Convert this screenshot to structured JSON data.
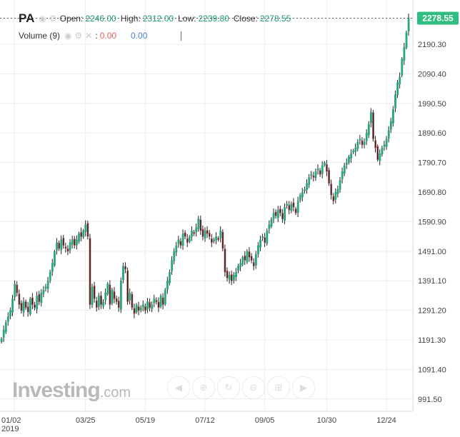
{
  "legend": {
    "symbol": "PA",
    "open_label": "Open:",
    "open": "2246.00",
    "high_label": "High:",
    "high": "2312.00",
    "low_label": "Low:",
    "low": "2239.80",
    "close_label": "Close:",
    "close": "2278.55",
    "volume_label": "Volume (9)",
    "volume_sep": ":",
    "volume_val1": "0.00",
    "volume_val2": "0.00"
  },
  "watermark": {
    "brand": "Investing",
    "domain": ".com"
  },
  "colors": {
    "up": "#26a67a",
    "down": "#e07070",
    "grid": "#ececec",
    "price_tag": "#2fbe7f"
  },
  "chart_data": {
    "type": "candlestick",
    "title": "",
    "xlabel": "",
    "ylabel": "",
    "ylim": [
      950,
      2340
    ],
    "y_ticks": [
      "2190.30",
      "2090.40",
      "1990.50",
      "1890.60",
      "1790.70",
      "1690.80",
      "1590.90",
      "1491.00",
      "1391.10",
      "1291.20",
      "1191.30",
      "1091.40",
      "991.50"
    ],
    "x_ticks": [
      "01/02\n2019",
      "03/25",
      "05/19",
      "07/12",
      "09/05",
      "10/30",
      "12/24"
    ],
    "last_price_label": "2278.55",
    "last_price": 2278.55,
    "grid": true,
    "closes": [
      1195,
      1225,
      1250,
      1270,
      1290,
      1330,
      1380,
      1350,
      1310,
      1290,
      1320,
      1300,
      1285,
      1330,
      1310,
      1300,
      1340,
      1320,
      1350,
      1360,
      1370,
      1390,
      1420,
      1450,
      1490,
      1520,
      1500,
      1530,
      1510,
      1500,
      1490,
      1520,
      1530,
      1510,
      1530,
      1550,
      1540,
      1560,
      1580,
      1540,
      1310,
      1370,
      1330,
      1300,
      1340,
      1310,
      1320,
      1350,
      1380,
      1310,
      1360,
      1330,
      1320,
      1300,
      1390,
      1440,
      1430,
      1320,
      1350,
      1300,
      1280,
      1310,
      1290,
      1300,
      1310,
      1290,
      1320,
      1300,
      1310,
      1330,
      1320,
      1300,
      1340,
      1310,
      1360,
      1390,
      1420,
      1460,
      1490,
      1510,
      1530,
      1510,
      1550,
      1540,
      1520,
      1540,
      1560,
      1550,
      1570,
      1600,
      1560,
      1540,
      1560,
      1550,
      1540,
      1520,
      1530,
      1540,
      1530,
      1560,
      1500,
      1420,
      1400,
      1410,
      1390,
      1410,
      1420,
      1440,
      1450,
      1470,
      1460,
      1490,
      1470,
      1460,
      1440,
      1480,
      1510,
      1530,
      1540,
      1520,
      1560,
      1580,
      1600,
      1620,
      1610,
      1630,
      1620,
      1600,
      1640,
      1650,
      1630,
      1650,
      1640,
      1620,
      1660,
      1680,
      1690,
      1700,
      1720,
      1740,
      1750,
      1740,
      1760,
      1770,
      1750,
      1780,
      1790,
      1760,
      1720,
      1680,
      1660,
      1690,
      1700,
      1730,
      1760,
      1780,
      1790,
      1810,
      1820,
      1830,
      1840,
      1860,
      1870,
      1850,
      1860,
      1890,
      1920,
      1960,
      1870,
      1840,
      1800,
      1820,
      1840,
      1850,
      1870,
      1900,
      1930,
      1970,
      2020,
      2060,
      2080,
      2140,
      2180,
      2230,
      2278.55
    ]
  }
}
